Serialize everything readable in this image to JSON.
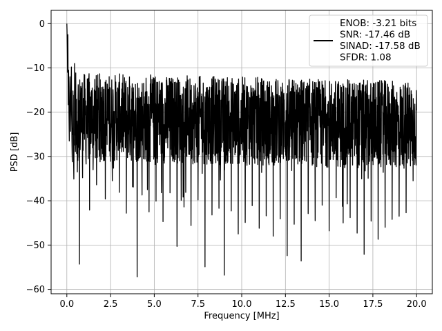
{
  "chart_data": {
    "type": "line",
    "xlabel": "Frequency [MHz]",
    "ylabel": "PSD [dB]",
    "xlim": [
      -0.9,
      20.9
    ],
    "ylim": [
      -61,
      3
    ],
    "xticks": [
      0.0,
      2.5,
      5.0,
      7.5,
      10.0,
      12.5,
      15.0,
      17.5,
      20.0
    ],
    "xtick_labels": [
      "0.0",
      "2.5",
      "5.0",
      "7.5",
      "10.0",
      "12.5",
      "15.0",
      "17.5",
      "20.0"
    ],
    "yticks": [
      0,
      -10,
      -20,
      -30,
      -40,
      -50,
      -60
    ],
    "ytick_labels": [
      "0",
      "−10",
      "−20",
      "−30",
      "−40",
      "−50",
      "−60"
    ],
    "grid": true,
    "legend_position": "top-right",
    "legend_lines": [
      "ENOB: -3.21 bits",
      "SNR: -17.46 dB",
      "SINAD: -17.58 dB",
      "SFDR: 1.08"
    ],
    "series_color": "#000000",
    "grid_color": "#b0b0b0",
    "series": [
      {
        "name": "ENOB: -3.21 bits\nSNR: -17.46 dB\nSINAD: -17.58 dB\nSFDR: 1.08",
        "x": [
          0.0,
          0.02,
          0.04,
          0.06,
          0.08,
          0.1,
          0.14,
          0.18,
          0.22,
          0.26,
          0.3,
          0.35,
          0.4,
          0.45,
          0.5,
          0.55,
          0.6,
          0.65,
          0.7,
          0.72,
          0.75,
          0.8,
          0.9,
          1.0,
          1.1,
          1.2,
          1.3,
          1.4,
          1.5,
          1.6,
          1.7,
          1.8,
          1.9,
          2.0,
          2.2,
          2.4,
          2.6,
          2.8,
          3.0,
          3.2,
          3.4,
          3.6,
          3.8,
          4.0,
          4.02,
          4.1,
          4.3,
          4.5,
          4.7,
          4.9,
          5.1,
          5.3,
          5.5,
          5.7,
          5.9,
          6.1,
          6.3,
          6.5,
          6.7,
          6.9,
          7.1,
          7.3,
          7.5,
          7.7,
          7.9,
          8.1,
          8.3,
          8.5,
          8.7,
          8.9,
          9.0,
          9.2,
          9.4,
          9.6,
          9.8,
          10.0,
          10.2,
          10.4,
          10.6,
          10.8,
          11.0,
          11.2,
          11.4,
          11.6,
          11.8,
          12.0,
          12.2,
          12.4,
          12.6,
          12.8,
          13.0,
          13.2,
          13.4,
          13.6,
          13.8,
          14.0,
          14.2,
          14.4,
          14.6,
          14.8,
          15.0,
          15.2,
          15.4,
          15.6,
          15.8,
          16.0,
          16.2,
          16.4,
          16.6,
          16.8,
          17.0,
          17.2,
          17.4,
          17.6,
          17.8,
          18.0,
          18.2,
          18.4,
          18.6,
          18.8,
          19.0,
          19.2,
          19.4,
          19.6,
          19.8,
          20.0
        ],
        "y": [
          0.0,
          -4.2,
          -11.0,
          -2.5,
          -18.3,
          -10.5,
          -26.5,
          -12.0,
          -24.3,
          -9.8,
          -29.0,
          -15.2,
          -35.1,
          -12.4,
          -27.6,
          -17.1,
          -33.5,
          -13.8,
          -30.2,
          -54.3,
          -21.5,
          -14.2,
          -34.8,
          -16.5,
          -31.7,
          -13.9,
          -42.1,
          -15.8,
          -33.0,
          -12.6,
          -36.4,
          -17.9,
          -31.2,
          -14.4,
          -39.6,
          -16.3,
          -35.5,
          -13.2,
          -38.1,
          -15.7,
          -42.8,
          -14.1,
          -36.9,
          -16.8,
          -57.2,
          -20.3,
          -38.7,
          -15.4,
          -42.5,
          -17.2,
          -40.1,
          -16.0,
          -44.7,
          -18.5,
          -38.2,
          -16.9,
          -50.3,
          -17.6,
          -41.4,
          -15.3,
          -45.6,
          -18.1,
          -39.8,
          -16.4,
          -54.9,
          -17.5,
          -43.2,
          -15.9,
          -41.7,
          -18.3,
          -56.8,
          -19.4,
          -42.3,
          -16.1,
          -47.5,
          -17.7,
          -44.9,
          -18.6,
          -41.1,
          -19.2,
          -46.2,
          -16.6,
          -43.4,
          -17.1,
          -48.0,
          -18.8,
          -44.1,
          -16.2,
          -52.4,
          -19.0,
          -45.3,
          -17.3,
          -53.6,
          -18.1,
          -42.9,
          -15.7,
          -44.5,
          -17.8,
          -41.0,
          -16.5,
          -46.8,
          -18.2,
          -39.3,
          -17.0,
          -45.0,
          -18.7,
          -43.8,
          -17.4,
          -47.3,
          -18.9,
          -52.1,
          -19.3,
          -44.6,
          -17.6,
          -48.7,
          -18.4,
          -46.0,
          -18.0,
          -44.2,
          -17.2,
          -43.5,
          -16.8,
          -42.7,
          -18.3,
          -35.5,
          -19.6
        ]
      }
    ]
  }
}
